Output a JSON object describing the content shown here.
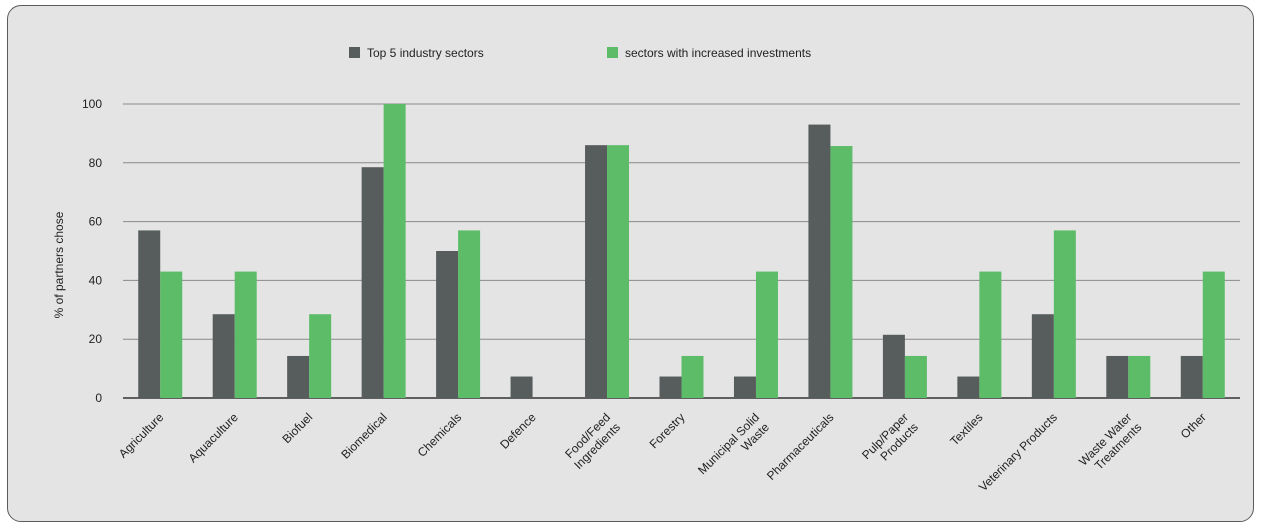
{
  "chart_data": {
    "type": "bar",
    "title": "",
    "ylabel": "% of partners chose",
    "xlabel": "",
    "ylim": [
      0,
      100
    ],
    "yticks": [
      0,
      20,
      40,
      60,
      80,
      100
    ],
    "grid": true,
    "legend_position": "top",
    "categories": [
      "Agriculture",
      "Aquaculture",
      "Biofuel",
      "Biomedical",
      "Chemicals",
      "Defence",
      "Food/Feed\nIngredients",
      "Forestry",
      "Municipal Solid\nWaste",
      "Pharmaceuticals",
      "Pulp/Paper\nProducts",
      "Textiles",
      "Veterinary Products",
      "Waste Water\nTreatments",
      "Other"
    ],
    "series": [
      {
        "name": "Top 5 industry sectors",
        "color": "#575c5c",
        "values": [
          57,
          28.5,
          14.3,
          78.5,
          50,
          7.3,
          86,
          7.3,
          7.3,
          93,
          21.5,
          7.3,
          28.5,
          14.3,
          14.3
        ]
      },
      {
        "name": "sectors with increased  investments",
        "color": "#5cbc68",
        "values": [
          43,
          43,
          28.5,
          100,
          57,
          0,
          86,
          14.3,
          43,
          85.7,
          14.3,
          43,
          57,
          14.3,
          43
        ]
      }
    ]
  }
}
